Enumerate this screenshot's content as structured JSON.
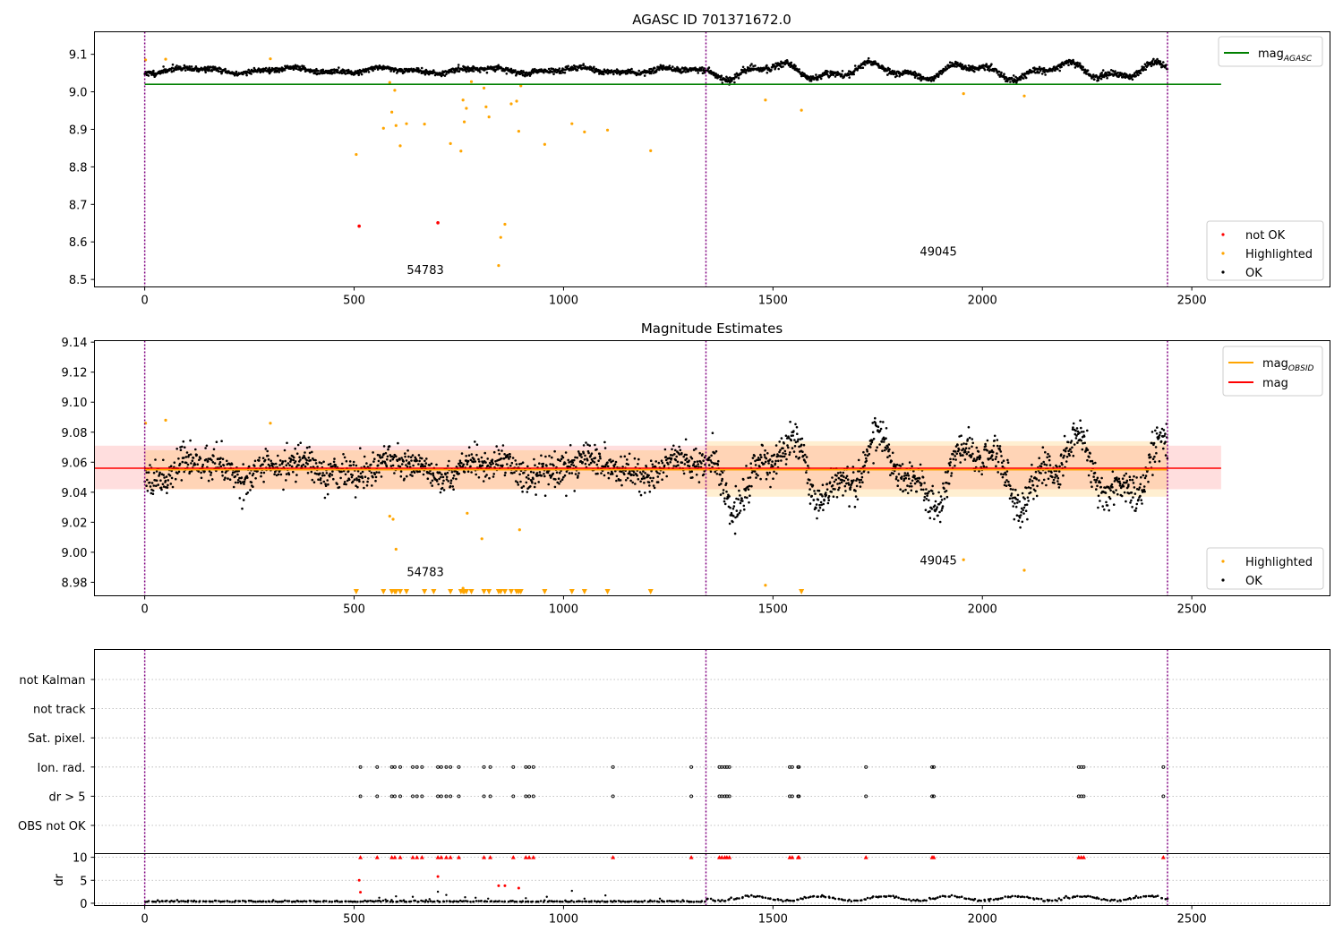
{
  "colors": {
    "ok": "#000000",
    "highlighted": "#ffa500",
    "not_ok": "#ff0000",
    "mag_agasc": "#008000",
    "mag_obsid": "#ffa500",
    "mag": "#ff0000",
    "obs_boundary": "#800080",
    "grid": "#b0b0b0"
  },
  "chart_data": [
    {
      "panel": "top",
      "type": "scatter",
      "title": "AGASC ID 701371672.0",
      "xlim": [
        -120,
        2830
      ],
      "ylim": [
        8.48,
        9.16
      ],
      "x_ticks": [
        0,
        500,
        1000,
        1500,
        2000,
        2500
      ],
      "y_ticks": [
        8.5,
        8.6,
        8.7,
        8.8,
        8.9,
        9.0,
        9.1
      ],
      "y_tick_labels": [
        "8.5",
        "8.6",
        "8.7",
        "8.8",
        "8.9",
        "9.0",
        "9.1"
      ],
      "obs_boundaries": [
        0,
        1340,
        2442
      ],
      "obsids": [
        {
          "label": "54783",
          "x": 670,
          "y": 8.515
        },
        {
          "label": "49045",
          "x": 1895,
          "y": 8.563
        }
      ],
      "mag_agasc": {
        "value": 9.02,
        "x_range": [
          0,
          2570
        ]
      },
      "legend_lines": [
        {
          "label": "mag",
          "sub": "AGASC",
          "color_key": "mag_agasc"
        }
      ],
      "legend_points": [
        {
          "label": "not OK",
          "color_key": "not_ok"
        },
        {
          "label": "Highlighted",
          "color_key": "highlighted"
        },
        {
          "label": "OK",
          "color_key": "ok"
        }
      ],
      "ok_segments": [
        {
          "x": [
            0,
            1340
          ],
          "base": 9.057,
          "amp": 0.009,
          "noise": 0.006,
          "n": 1200,
          "seed": 11
        },
        {
          "x": [
            1343,
            2442
          ],
          "base": 9.055,
          "amp": 0.025,
          "noise": 0.007,
          "n": 1050,
          "seed": 17
        }
      ],
      "highlighted": [
        [
          2,
          9.085
        ],
        [
          50,
          9.087
        ],
        [
          300,
          9.088
        ],
        [
          505,
          8.833
        ],
        [
          570,
          8.903
        ],
        [
          585,
          9.025
        ],
        [
          590,
          8.946
        ],
        [
          597,
          9.004
        ],
        [
          600,
          8.91
        ],
        [
          610,
          8.856
        ],
        [
          625,
          8.915
        ],
        [
          668,
          8.914
        ],
        [
          730,
          8.862
        ],
        [
          755,
          8.842
        ],
        [
          760,
          8.978
        ],
        [
          763,
          8.92
        ],
        [
          768,
          8.956
        ],
        [
          780,
          9.027
        ],
        [
          810,
          9.01
        ],
        [
          815,
          8.96
        ],
        [
          822,
          8.933
        ],
        [
          845,
          8.537
        ],
        [
          850,
          8.612
        ],
        [
          860,
          8.647
        ],
        [
          875,
          8.968
        ],
        [
          888,
          8.975
        ],
        [
          893,
          8.895
        ],
        [
          898,
          9.016
        ],
        [
          955,
          8.86
        ],
        [
          1020,
          8.915
        ],
        [
          1050,
          8.893
        ],
        [
          1105,
          8.898
        ],
        [
          1208,
          8.843
        ],
        [
          1482,
          8.978
        ],
        [
          1568,
          8.951
        ],
        [
          1955,
          8.995
        ],
        [
          2100,
          8.989
        ]
      ],
      "not_ok": [
        [
          512,
          8.642
        ],
        [
          700,
          8.651
        ]
      ]
    },
    {
      "panel": "middle",
      "type": "scatter",
      "title": "Magnitude Estimates",
      "xlim": [
        -120,
        2830
      ],
      "ylim": [
        8.971,
        9.141
      ],
      "x_ticks": [
        0,
        500,
        1000,
        1500,
        2000,
        2500
      ],
      "y_ticks": [
        8.98,
        9.0,
        9.02,
        9.04,
        9.06,
        9.08,
        9.1,
        9.12,
        9.14
      ],
      "y_tick_labels": [
        "8.98",
        "9.00",
        "9.02",
        "9.04",
        "9.06",
        "9.08",
        "9.10",
        "9.12",
        "9.14"
      ],
      "obs_boundaries": [
        0,
        1340,
        2442
      ],
      "obsids": [
        {
          "label": "54783",
          "x": 670,
          "y": 8.984
        },
        {
          "label": "49045",
          "x": 1895,
          "y": 8.992
        }
      ],
      "mag": {
        "value": 9.056,
        "band": [
          9.042,
          9.071
        ],
        "x_range": [
          -120,
          2570
        ]
      },
      "mag_obsid": [
        {
          "x_range": [
            0,
            1340
          ],
          "value": 9.055,
          "band": [
            9.042,
            9.068
          ]
        },
        {
          "x_range": [
            1340,
            2442
          ],
          "value": 9.055,
          "band": [
            9.037,
            9.074
          ]
        }
      ],
      "legend_lines": [
        {
          "label": "mag",
          "sub": "OBSID",
          "color_key": "mag_obsid"
        },
        {
          "label": "mag",
          "sub": "",
          "color_key": "mag"
        }
      ],
      "legend_points": [
        {
          "label": "Highlighted",
          "color_key": "highlighted"
        },
        {
          "label": "OK",
          "color_key": "ok"
        }
      ],
      "ok_segments": [
        {
          "x": [
            0,
            1340
          ],
          "base": 9.056,
          "amp": 0.008,
          "noise": 0.009,
          "n": 1200,
          "seed": 23
        },
        {
          "x": [
            1343,
            2442
          ],
          "base": 9.054,
          "amp": 0.026,
          "noise": 0.01,
          "n": 1050,
          "seed": 29
        }
      ],
      "highlighted": [
        [
          2,
          9.086
        ],
        [
          50,
          9.088
        ],
        [
          300,
          9.086
        ],
        [
          585,
          9.024
        ],
        [
          593,
          9.022
        ],
        [
          600,
          9.002
        ],
        [
          770,
          9.026
        ],
        [
          805,
          9.009
        ],
        [
          895,
          9.015
        ],
        [
          1955,
          8.995
        ],
        [
          2100,
          8.988
        ],
        [
          1482,
          8.978
        ],
        [
          760,
          8.976
        ]
      ],
      "below_markers": [
        505,
        570,
        590,
        597,
        600,
        610,
        625,
        668,
        690,
        730,
        755,
        760,
        763,
        768,
        780,
        810,
        822,
        845,
        850,
        860,
        875,
        888,
        893,
        898,
        955,
        1020,
        1050,
        1105,
        1208,
        1568
      ]
    },
    {
      "panel": "flags",
      "type": "scatter",
      "xlim": [
        -120,
        2830
      ],
      "obs_boundaries": [
        0,
        1340,
        2442
      ],
      "categories": [
        "not Kalman",
        "not track",
        "Sat. pixel.",
        "Ion. rad.",
        "dr > 5",
        "OBS not OK"
      ],
      "flag_points": [
        515,
        555,
        590,
        597,
        610,
        640,
        650,
        662,
        700,
        708,
        720,
        730,
        750,
        810,
        825,
        880,
        910,
        918,
        928,
        1118,
        1305,
        1372,
        1378,
        1385,
        1390,
        1396,
        1540,
        1546,
        1560,
        1562,
        1722,
        1880,
        1884,
        2230,
        2236,
        2242,
        2432
      ],
      "flagged_categories": [
        "Ion. rad.",
        "dr > 5"
      ]
    },
    {
      "panel": "dr",
      "type": "scatter",
      "ylabel": "dr",
      "xlim": [
        -120,
        2830
      ],
      "ylim": [
        -0.5,
        10.8
      ],
      "y_ticks": [
        0,
        5,
        10
      ],
      "y_tick_labels": [
        "0",
        "5",
        "10"
      ],
      "x_ticks": [
        0,
        500,
        1000,
        1500,
        2000,
        2500
      ],
      "obs_boundaries": [
        0,
        1340,
        2442
      ],
      "clipped_x": [
        515,
        555,
        590,
        597,
        610,
        640,
        650,
        662,
        700,
        708,
        720,
        730,
        750,
        810,
        825,
        880,
        910,
        918,
        928,
        1118,
        1305,
        1372,
        1378,
        1385,
        1390,
        1396,
        1540,
        1546,
        1560,
        1562,
        1722,
        1880,
        1884,
        2230,
        2236,
        2242,
        2432
      ],
      "high_dr": [
        [
          512,
          5.0
        ],
        [
          700,
          5.8
        ],
        [
          845,
          3.8
        ],
        [
          860,
          3.8
        ],
        [
          893,
          3.3
        ],
        [
          515,
          2.4
        ]
      ],
      "scatter_dr": [
        [
          560,
          1.2
        ],
        [
          575,
          0.8
        ],
        [
          600,
          1.5
        ],
        [
          640,
          1.4
        ],
        [
          680,
          0.9
        ],
        [
          700,
          2.5
        ],
        [
          720,
          1.8
        ],
        [
          765,
          1.3
        ],
        [
          790,
          1.2
        ],
        [
          820,
          1.0
        ],
        [
          910,
          1.1
        ],
        [
          960,
          1.4
        ],
        [
          1020,
          2.7
        ],
        [
          1050,
          1.0
        ],
        [
          1100,
          1.7
        ],
        [
          1230,
          1.0
        ]
      ]
    }
  ]
}
